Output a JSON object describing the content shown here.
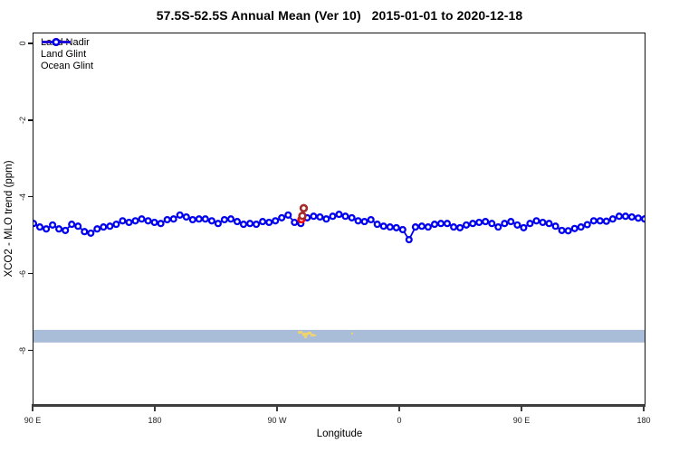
{
  "title": "57.5S-52.5S Annual Mean (Ver 10)   2015-01-01 to 2020-12-18",
  "axes": {
    "x_label": "Longitude",
    "y_label": "XCO2 - MLO trend (ppm)"
  },
  "chart_data": {
    "type": "line",
    "title": "57.5S-52.5S Annual Mean (Ver 10)   2015-01-01 to 2020-12-18",
    "xlabel": "Longitude",
    "ylabel": "XCO2 - MLO trend (ppm)",
    "xlim": [
      90,
      540
    ],
    "ylim": [
      0.28,
      -9.42
    ],
    "grid": false,
    "legend_position": "top-left",
    "x_ticks": {
      "values": [
        90,
        180,
        270,
        360,
        450,
        540
      ],
      "labels": [
        "90 E",
        "180",
        "90 W",
        "0",
        "90 E",
        "180"
      ]
    },
    "y_ticks": {
      "values": [
        0,
        -2,
        -4,
        -6,
        -8
      ],
      "labels": [
        "0",
        "-2",
        "-4",
        "-6",
        "-8"
      ]
    },
    "series": [
      {
        "name": "Land Nadir",
        "color": "#a52a2a",
        "marker": "open-circle",
        "marker_r": 3.4,
        "marker_lw": 2.6,
        "line_lw": 2,
        "points": [
          [
            289.0,
            -4.27
          ],
          [
            288.0,
            -4.47
          ]
        ]
      },
      {
        "name": "Land Glint",
        "color": "#ff0000",
        "marker": "open-circle",
        "marker_r": 3.3,
        "marker_lw": 2.5,
        "line_lw": 2,
        "points": [
          [
            287.3,
            -4.56
          ]
        ]
      },
      {
        "name": "Ocean Glint",
        "color": "#0000ee",
        "marker": "open-circle",
        "marker_r": 2.9,
        "marker_lw": 2.3,
        "line_lw": 1.8,
        "x_start": 90,
        "x_step": 4.6875,
        "values": [
          -4.67,
          -4.76,
          -4.81,
          -4.71,
          -4.81,
          -4.85,
          -4.69,
          -4.74,
          -4.88,
          -4.92,
          -4.81,
          -4.76,
          -4.74,
          -4.69,
          -4.6,
          -4.64,
          -4.6,
          -4.55,
          -4.6,
          -4.64,
          -4.67,
          -4.57,
          -4.55,
          -4.45,
          -4.5,
          -4.57,
          -4.55,
          -4.55,
          -4.6,
          -4.67,
          -4.57,
          -4.55,
          -4.62,
          -4.69,
          -4.67,
          -4.69,
          -4.62,
          -4.64,
          -4.6,
          -4.52,
          -4.45,
          -4.64,
          -4.67,
          -4.52,
          -4.48,
          -4.5,
          -4.55,
          -4.48,
          -4.43,
          -4.48,
          -4.52,
          -4.6,
          -4.62,
          -4.57,
          -4.69,
          -4.74,
          -4.76,
          -4.78,
          -4.83,
          -5.09,
          -4.76,
          -4.74,
          -4.76,
          -4.69,
          -4.67,
          -4.67,
          -4.76,
          -4.78,
          -4.71,
          -4.67,
          -4.64,
          -4.62,
          -4.67,
          -4.76,
          -4.67,
          -4.62,
          -4.71,
          -4.78,
          -4.67,
          -4.6,
          -4.64,
          -4.67,
          -4.74,
          -4.85,
          -4.86,
          -4.8,
          -4.76,
          -4.7,
          -4.6,
          -4.6,
          -4.61,
          -4.55,
          -4.48,
          -4.48,
          -4.5,
          -4.53,
          -4.55
        ]
      }
    ],
    "map_band": {
      "description": "latitude-band map strip (ocean with land patches)",
      "v_top": -7.44,
      "v_bottom": -7.77,
      "ocean_color": "#a9bdd9",
      "land_color": "#f0d26e",
      "land_patches": [
        {
          "lon": 284.7,
          "wdeg": 3.3,
          "v_top": -7.47,
          "v_h": 0.07
        },
        {
          "lon": 288.0,
          "wdeg": 4.0,
          "v_top": -7.51,
          "v_h": 0.094
        },
        {
          "lon": 292.0,
          "wdeg": 2.7,
          "v_top": -7.49,
          "v_h": 0.07
        },
        {
          "lon": 294.0,
          "wdeg": 2.7,
          "v_top": -7.54,
          "v_h": 0.07
        },
        {
          "lon": 289.3,
          "wdeg": 2.0,
          "v_top": -7.61,
          "v_h": 0.047
        },
        {
          "lon": 296.0,
          "wdeg": 2.0,
          "v_top": -7.56,
          "v_h": 0.047
        },
        {
          "lon": 324.0,
          "wdeg": 1.3,
          "v_top": -7.51,
          "v_h": 0.047
        }
      ]
    }
  }
}
